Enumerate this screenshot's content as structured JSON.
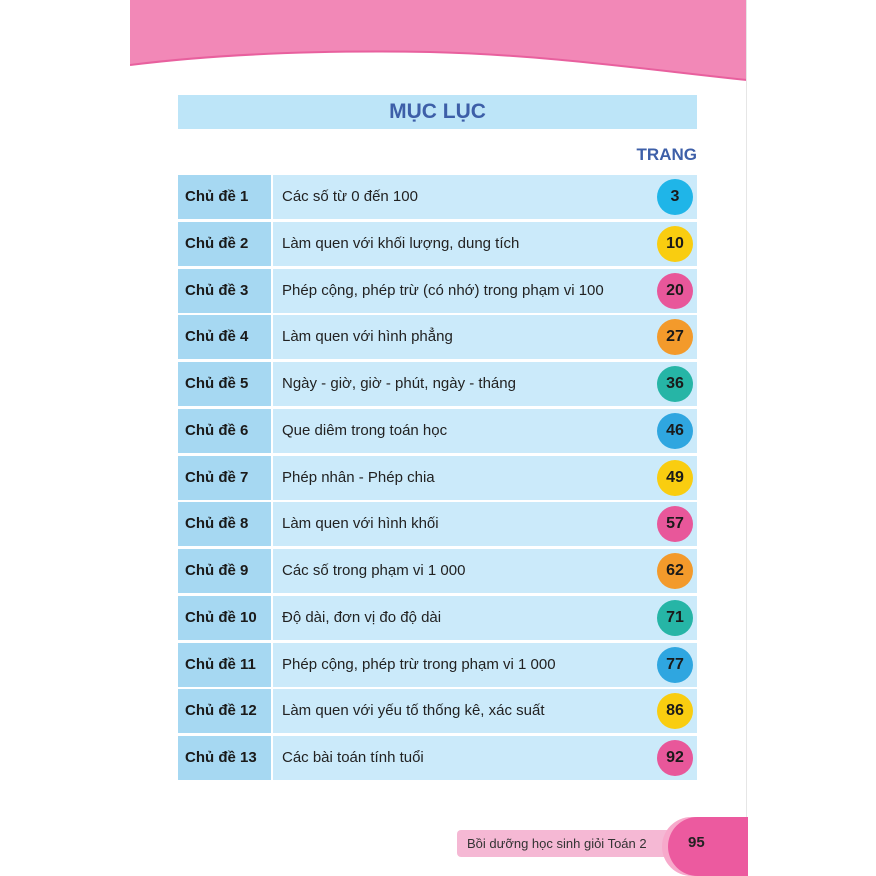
{
  "title": "MỤC LỤC",
  "page_header": "TRANG",
  "rows": [
    {
      "label": "Chủ đề 1",
      "text": "Các số từ 0 đến 100",
      "page": "3",
      "color": "#1fb5e8"
    },
    {
      "label": "Chủ đề 2",
      "text": "Làm quen với khối lượng, dung tích",
      "page": "10",
      "color": "#f9cd10"
    },
    {
      "label": "Chủ đề 3",
      "text": "Phép cộng, phép trừ (có nhớ) trong phạm vi 100",
      "page": "20",
      "color": "#e8579a"
    },
    {
      "label": "Chủ đề 4",
      "text": "Làm quen với hình phẳng",
      "page": "27",
      "color": "#f39a2b"
    },
    {
      "label": "Chủ đề 5",
      "text": "Ngày - giờ, giờ - phút, ngày - tháng",
      "page": "36",
      "color": "#26b5a6"
    },
    {
      "label": "Chủ đề 6",
      "text": "Que diêm trong toán học",
      "page": "46",
      "color": "#2fa6e0"
    },
    {
      "label": "Chủ đề 7",
      "text": "Phép nhân - Phép chia",
      "page": "49",
      "color": "#f9cd10"
    },
    {
      "label": "Chủ đề 8",
      "text": "Làm quen với hình khối",
      "page": "57",
      "color": "#e8579a"
    },
    {
      "label": "Chủ đề 9",
      "text": "Các số trong phạm vi 1 000",
      "page": "62",
      "color": "#f39a2b"
    },
    {
      "label": "Chủ đề 10",
      "text": "Độ dài, đơn vị đo độ dài",
      "page": "71",
      "color": "#26b5a6"
    },
    {
      "label": "Chủ đề 11",
      "text": "Phép cộng, phép trừ trong phạm vi 1 000",
      "page": "77",
      "color": "#2fa6e0"
    },
    {
      "label": "Chủ đề 12",
      "text": "Làm quen với yếu tố thống kê, xác suất",
      "page": "86",
      "color": "#f9cd10"
    },
    {
      "label": "Chủ đề 13",
      "text": "Các bài toán tính tuổi",
      "page": "92",
      "color": "#e8579a"
    }
  ],
  "footer": {
    "book_title": "Bồi dưỡng học sinh giỏi Toán 2",
    "page_number": "95"
  }
}
